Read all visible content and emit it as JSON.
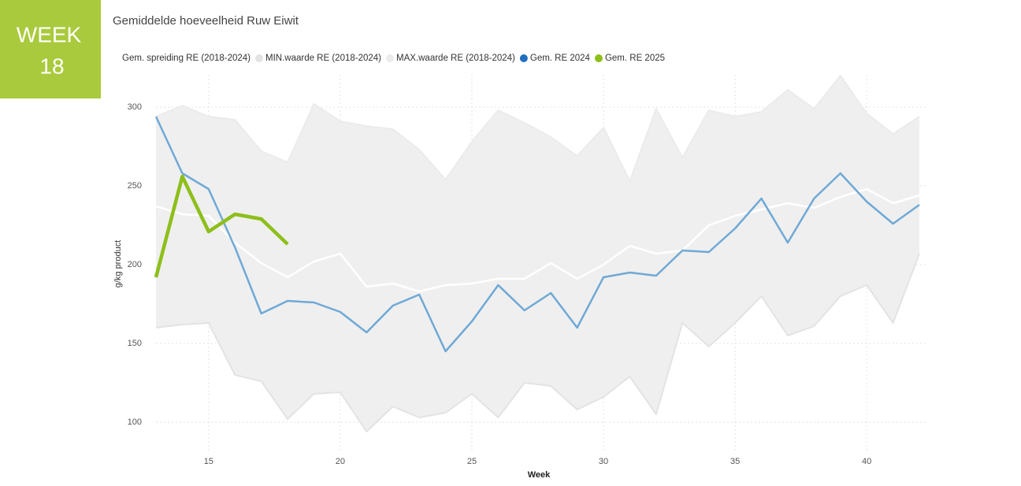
{
  "badge": {
    "line1": "WEEK",
    "line2": "18"
  },
  "chart_data": {
    "type": "line",
    "title": "Gemiddelde hoeveelheid Ruw Eiwit",
    "xlabel": "Week",
    "ylabel": "g/kg product",
    "x": [
      13,
      14,
      15,
      16,
      17,
      18,
      19,
      20,
      21,
      22,
      23,
      24,
      25,
      26,
      27,
      28,
      29,
      30,
      31,
      32,
      33,
      34,
      35,
      36,
      37,
      38,
      39,
      40,
      41,
      42
    ],
    "xlim": [
      13,
      42
    ],
    "xticks": [
      15,
      20,
      25,
      30,
      35,
      40
    ],
    "ylim": [
      82,
      322
    ],
    "yticks": [
      100,
      150,
      200,
      250,
      300
    ],
    "grid": true,
    "legend": "top",
    "series": [
      {
        "name": "Gem. spreiding RE (2018-2024)",
        "color": "#ffffff",
        "role": "average",
        "values": [
          237,
          232,
          231,
          214,
          201,
          192,
          202,
          207,
          186,
          188,
          183,
          187,
          188,
          191,
          191,
          201,
          191,
          200,
          212,
          207,
          209,
          225,
          231,
          235,
          239,
          236,
          243,
          248,
          239,
          244
        ]
      },
      {
        "name": "MIN.waarde RE (2018-2024)",
        "color": "#e3e3e3",
        "role": "min",
        "values": [
          160,
          162,
          163,
          130,
          126,
          102,
          118,
          119,
          94,
          110,
          103,
          106,
          118,
          103,
          125,
          123,
          108,
          116,
          129,
          105,
          163,
          148,
          163,
          180,
          155,
          161,
          180,
          187,
          163,
          207
        ]
      },
      {
        "name": "MAX.waarde RE (2018-2024)",
        "color": "#ebebeb",
        "role": "max",
        "values": [
          294,
          301,
          294,
          292,
          272,
          265,
          302,
          291,
          288,
          286,
          273,
          254,
          278,
          298,
          290,
          281,
          269,
          287,
          253,
          299,
          268,
          298,
          294,
          297,
          311,
          299,
          320,
          296,
          283,
          294
        ]
      },
      {
        "name": "Gem. RE 2024",
        "color": "#6fa9d6",
        "values": [
          294,
          258,
          248,
          211,
          169,
          177,
          176,
          170,
          157,
          174,
          181,
          145,
          164,
          187,
          171,
          182,
          160,
          192,
          195,
          193,
          209,
          208,
          223,
          242,
          214,
          242,
          258,
          240,
          226,
          238
        ]
      },
      {
        "name": "Gem. RE 2025",
        "color": "#8dbf1a",
        "values": [
          192,
          256,
          221,
          232,
          229,
          213,
          null,
          null,
          null,
          null,
          null,
          null,
          null,
          null,
          null,
          null,
          null,
          null,
          null,
          null,
          null,
          null,
          null,
          null,
          null,
          null,
          null,
          null,
          null,
          null
        ]
      }
    ]
  }
}
